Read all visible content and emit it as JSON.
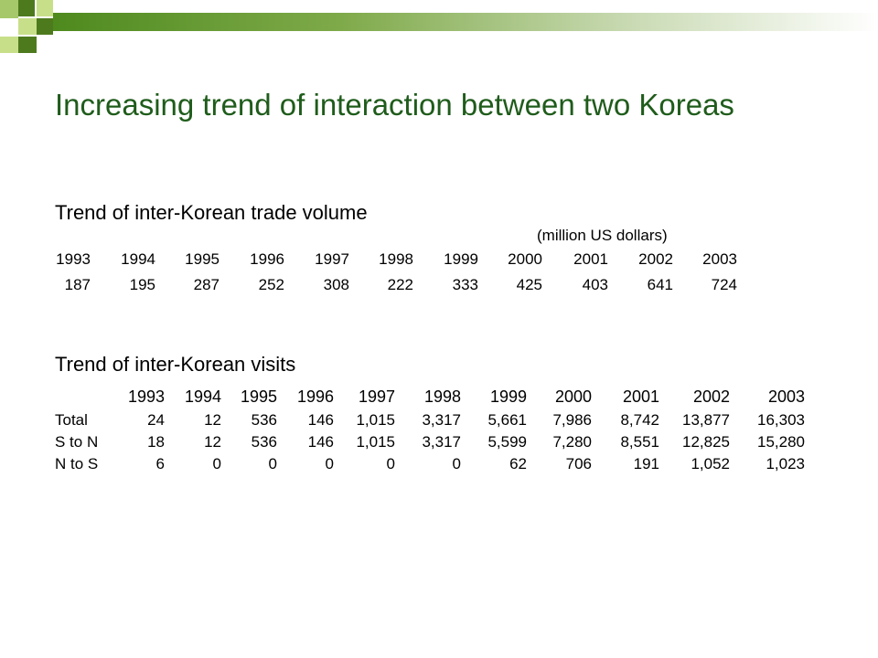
{
  "title": "Increasing trend of interaction between two Koreas",
  "trade": {
    "heading": "Trend of inter-Korean trade volume",
    "unit": "(million US dollars)",
    "years": [
      "1993",
      "1994",
      "1995",
      "1996",
      "1997",
      "1998",
      "1999",
      "2000",
      "2001",
      "2002",
      "2003"
    ],
    "values": [
      "187",
      "195",
      "287",
      "252",
      "308",
      "222",
      "333",
      "425",
      "403",
      "641",
      "724"
    ]
  },
  "visits": {
    "heading": "Trend of inter-Korean visits",
    "years": [
      "1993",
      "1994",
      "1995",
      "1996",
      "1997",
      "1998",
      "1999",
      "2000",
      "2001",
      "2002",
      "2003"
    ],
    "rows": [
      {
        "label": "Total",
        "values": [
          "24",
          "12",
          "536",
          "146",
          "1,015",
          "3,317",
          "5,661",
          "7,986",
          "8,742",
          "13,877",
          "16,303"
        ]
      },
      {
        "label": "S to N",
        "values": [
          "18",
          "12",
          "536",
          "146",
          "1,015",
          "3,317",
          "5,599",
          "7,280",
          "8,551",
          "12,825",
          "15,280"
        ]
      },
      {
        "label": "N to S",
        "values": [
          "6",
          "0",
          "0",
          "0",
          "0",
          "0",
          "62",
          "706",
          "191",
          "1,052",
          "1,023"
        ]
      }
    ]
  }
}
